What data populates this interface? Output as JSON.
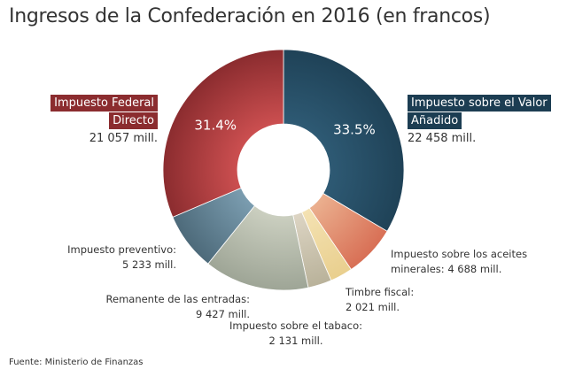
{
  "title": "Ingresos de la Confederación en 2016 (en francos)",
  "source": "Fuente: Ministerio de Finanzas",
  "chart_data": {
    "type": "pie",
    "subtype": "donut",
    "title": "Ingresos de la Confederación en 2016 (en francos)",
    "slices": [
      {
        "name": "Impuesto sobre el Valor Añadido",
        "name_lines": [
          "Impuesto sobre el Valor",
          "Añadido"
        ],
        "value": 22458,
        "value_label": "22 458 mill.",
        "percent_label": "33.5%",
        "color": "#1f4257",
        "color_light": "#2e5a74"
      },
      {
        "name": "Impuesto sobre los aceites minerales",
        "name_lines": [
          "Impuesto sobre los aceites",
          "minerales: 4 688 mill."
        ],
        "value": 4688,
        "value_label": "4 688 mill.",
        "color": "#d86f55",
        "color_light": "#ebb08f"
      },
      {
        "name": "Timbre fiscal",
        "name_lines": [
          "Timbre fiscal:",
          "2 021 mill."
        ],
        "value": 2021,
        "value_label": "2 021 mill.",
        "color": "#e9cf8e",
        "color_light": "#f4e2b3"
      },
      {
        "name": "Impuesto sobre el tabaco",
        "name_lines": [
          "Impuesto sobre el tabaco:",
          "2 131 mill."
        ],
        "value": 2131,
        "value_label": "2 131 mill.",
        "color": "#b9b29a",
        "color_light": "#ddd5c4"
      },
      {
        "name": "Remanente de las entradas",
        "name_lines": [
          "Remanente de las entradas:",
          "9 427 mill."
        ],
        "value": 9427,
        "value_label": "9 427 mill.",
        "color": "#9ea596",
        "color_light": "#cbcfc0"
      },
      {
        "name": "Impuesto preventivo",
        "name_lines": [
          "Impuesto preventivo:",
          "5 233 mill."
        ],
        "value": 5233,
        "value_label": "5 233 mill.",
        "color": "#4d6a7a",
        "color_light": "#7b9db0"
      },
      {
        "name": "Impuesto Federal Directo",
        "name_lines": [
          "Impuesto Federal",
          "Directo"
        ],
        "value": 21057,
        "value_label": "21 057 mill.",
        "percent_label": "31.4%",
        "color": "#8b2c2f",
        "color_light": "#cc4f50"
      }
    ]
  }
}
